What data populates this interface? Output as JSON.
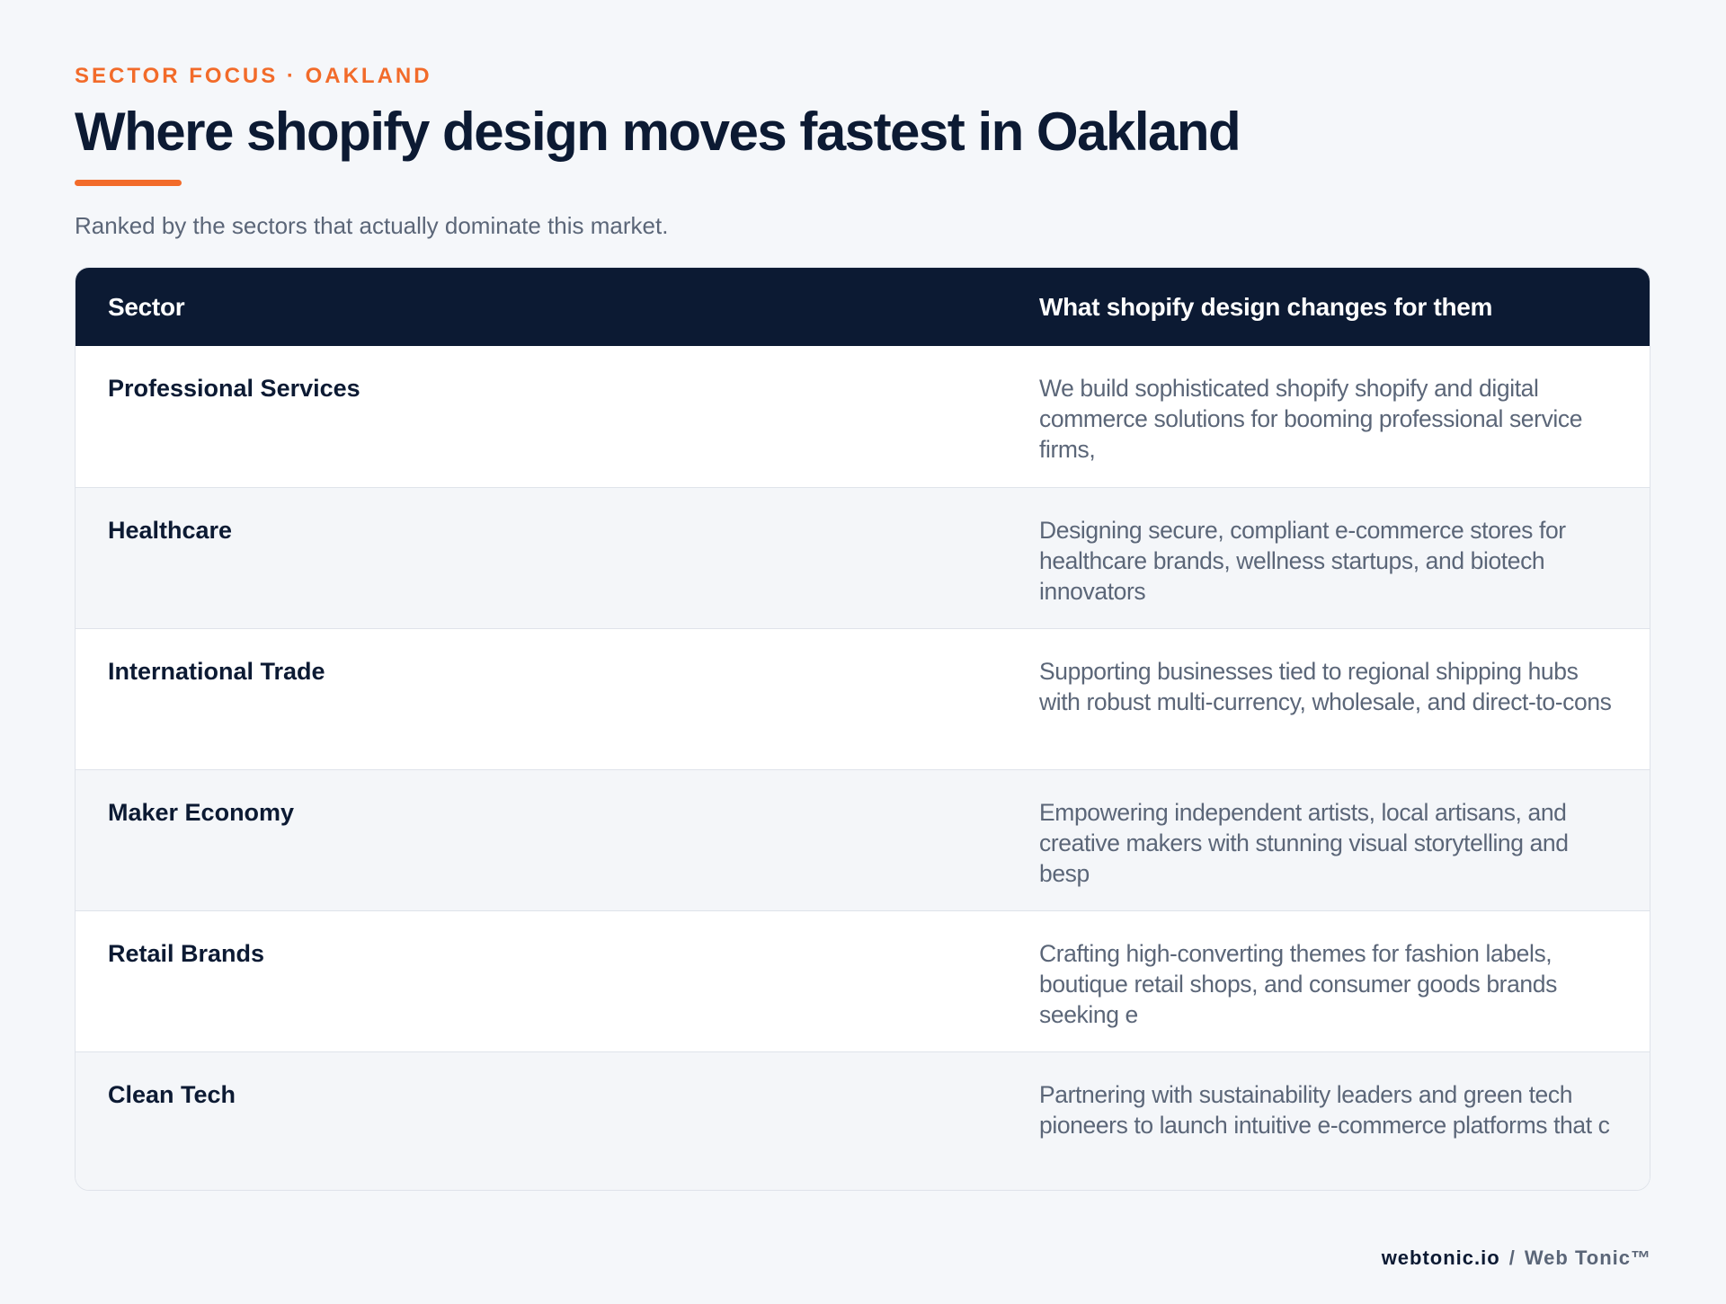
{
  "header": {
    "kicker": "SECTOR FOCUS · OAKLAND",
    "title": "Where shopify design moves fastest in Oakland",
    "subtitle": "Ranked by the sectors that actually dominate this market.",
    "accent_color": "#f26b2a"
  },
  "table": {
    "columns": [
      "Sector",
      "What shopify design changes for them"
    ],
    "header_color": "#0c1a33",
    "rows": [
      {
        "sector": "Professional Services",
        "description": "We build sophisticated shopify shopify and digital commerce solutions for booming professional service firms,"
      },
      {
        "sector": "Healthcare",
        "description": "Designing secure, compliant e-commerce stores for healthcare brands, wellness startups, and biotech innovators"
      },
      {
        "sector": "International Trade",
        "description": "Supporting businesses tied to regional shipping hubs with robust multi-currency, wholesale, and direct-to-cons"
      },
      {
        "sector": "Maker Economy",
        "description": "Empowering independent artists, local artisans, and creative makers with stunning visual storytelling and besp"
      },
      {
        "sector": "Retail Brands",
        "description": "Crafting high-converting themes for fashion labels, boutique retail shops, and consumer goods brands seeking e"
      },
      {
        "sector": "Clean Tech",
        "description": "Partnering with sustainability leaders and green tech pioneers to launch intuitive e-commerce platforms that c"
      }
    ]
  },
  "footer": {
    "domain": "webtonic.io",
    "separator": "/",
    "brand": "Web Tonic™"
  }
}
